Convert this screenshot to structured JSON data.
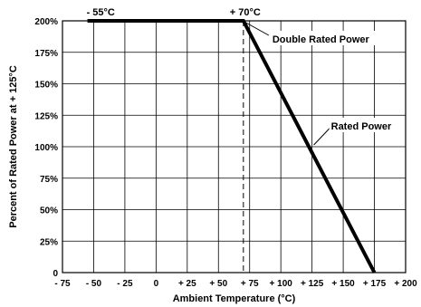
{
  "chart_data": {
    "type": "line",
    "title": "",
    "xlabel": "Ambient Temperature (°C)",
    "ylabel": "Percent of Rated Power at + 125°C",
    "xlim": [
      -75,
      200
    ],
    "ylim": [
      0,
      200
    ],
    "grid": true,
    "x_ticks": [
      -75,
      -50,
      -25,
      0,
      25,
      50,
      75,
      100,
      125,
      150,
      175,
      200
    ],
    "x_tick_labels": [
      "- 75",
      "- 50",
      "- 25",
      "0",
      "+ 25",
      "+ 50",
      "+ 75",
      "+ 100",
      "+ 125",
      "+ 150",
      "+ 175",
      "+ 200"
    ],
    "y_ticks": [
      0,
      25,
      50,
      75,
      100,
      125,
      150,
      175,
      200
    ],
    "y_tick_labels": [
      "0",
      "25%",
      "50%",
      "75%",
      "100%",
      "125%",
      "150%",
      "175%",
      "200%"
    ],
    "series": [
      {
        "x": [
          -55,
          70,
          175
        ],
        "y": [
          200,
          200,
          0
        ],
        "color": "#000000"
      }
    ],
    "reference_line": {
      "x": 70,
      "style": "dashed"
    },
    "annotations": [
      {
        "id": "minus55",
        "text": "- 55°C",
        "x": -55,
        "y": 200
      },
      {
        "id": "plus70",
        "text": "+ 70°C",
        "x": 70,
        "y": 200
      },
      {
        "id": "double",
        "text": "Double Rated Power",
        "x": 70,
        "y": 200
      },
      {
        "id": "rated",
        "text": "Rated Power",
        "x": 125,
        "y": 100
      }
    ]
  }
}
